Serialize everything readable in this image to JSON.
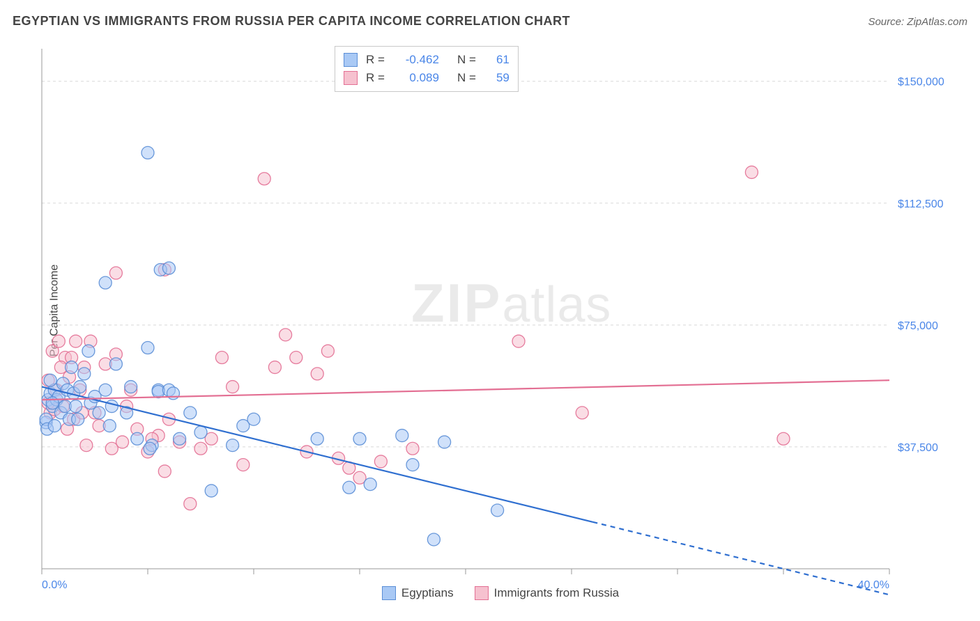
{
  "title": "EGYPTIAN VS IMMIGRANTS FROM RUSSIA PER CAPITA INCOME CORRELATION CHART",
  "source": "Source: ZipAtlas.com",
  "ylabel": "Per Capita Income",
  "watermark_bold": "ZIP",
  "watermark_light": "atlas",
  "chart": {
    "type": "scatter",
    "xlim": [
      0,
      40
    ],
    "ylim": [
      0,
      160000
    ],
    "x_ticks": [
      0,
      5,
      10,
      15,
      20,
      25,
      30,
      35,
      40
    ],
    "x_tick_labels": {
      "0": "0.0%",
      "40": "40.0%"
    },
    "y_gridlines": [
      37500,
      75000,
      112500,
      150000
    ],
    "y_tick_labels": [
      "$37,500",
      "$75,000",
      "$112,500",
      "$150,000"
    ],
    "grid_color": "#d8d8d8",
    "axis_color": "#999999",
    "label_color": "#4a86e8",
    "label_fontsize": 16,
    "background_color": "#ffffff",
    "marker_radius": 9,
    "marker_opacity": 0.55,
    "series": [
      {
        "name": "Egyptians",
        "fill": "#a9c9f5",
        "stroke": "#5b8ed6",
        "line_color": "#2f6fd0",
        "line_width": 2.2,
        "trend": {
          "y_at_x0": 56000,
          "y_at_x40": -8000,
          "solid_until_x": 26
        },
        "R": "-0.462",
        "N": "61",
        "points": [
          [
            0.3,
            52000
          ],
          [
            0.4,
            54000
          ],
          [
            0.5,
            50000
          ],
          [
            0.6,
            55000
          ],
          [
            0.7,
            52000
          ],
          [
            0.8,
            53000
          ],
          [
            0.5,
            51000
          ],
          [
            0.9,
            48000
          ],
          [
            1.0,
            57000
          ],
          [
            1.1,
            50000
          ],
          [
            1.2,
            55000
          ],
          [
            1.3,
            46000
          ],
          [
            0.2,
            45000
          ],
          [
            0.4,
            58000
          ],
          [
            1.5,
            54000
          ],
          [
            1.6,
            50000
          ],
          [
            1.8,
            56000
          ],
          [
            2.0,
            60000
          ],
          [
            2.2,
            67000
          ],
          [
            2.3,
            51000
          ],
          [
            2.5,
            53000
          ],
          [
            2.7,
            48000
          ],
          [
            3.0,
            55000
          ],
          [
            3.2,
            44000
          ],
          [
            3.3,
            50000
          ],
          [
            3.5,
            63000
          ],
          [
            4.0,
            48000
          ],
          [
            4.2,
            56000
          ],
          [
            4.5,
            40000
          ],
          [
            5.0,
            68000
          ],
          [
            5.2,
            38000
          ],
          [
            5.5,
            55000
          ],
          [
            5.5,
            54500
          ],
          [
            5.6,
            92000
          ],
          [
            6.0,
            92500
          ],
          [
            6.0,
            55000
          ],
          [
            6.2,
            54000
          ],
          [
            6.5,
            40000
          ],
          [
            7.0,
            48000
          ],
          [
            7.5,
            42000
          ],
          [
            8.0,
            24000
          ],
          [
            9.0,
            38000
          ],
          [
            9.5,
            44000
          ],
          [
            10.0,
            46000
          ],
          [
            3.0,
            88000
          ],
          [
            5.0,
            128000
          ],
          [
            5.1,
            37000
          ],
          [
            13.0,
            40000
          ],
          [
            14.5,
            25000
          ],
          [
            15.0,
            40000
          ],
          [
            15.5,
            26000
          ],
          [
            17.0,
            41000
          ],
          [
            17.5,
            32000
          ],
          [
            18.5,
            9000
          ],
          [
            19.0,
            39000
          ],
          [
            21.5,
            18000
          ],
          [
            0.2,
            46000
          ],
          [
            0.25,
            43000
          ],
          [
            0.6,
            44000
          ],
          [
            1.4,
            62000
          ],
          [
            1.7,
            46000
          ]
        ]
      },
      {
        "name": "Immigrants from Russia",
        "fill": "#f6c1cf",
        "stroke": "#e36f93",
        "line_color": "#e36f93",
        "line_width": 2.2,
        "trend": {
          "y_at_x0": 52000,
          "y_at_x40": 58000,
          "solid_until_x": 40
        },
        "R": "0.089",
        "N": "59",
        "points": [
          [
            0.4,
            48000
          ],
          [
            0.5,
            67000
          ],
          [
            0.6,
            49000
          ],
          [
            0.8,
            70000
          ],
          [
            1.0,
            50000
          ],
          [
            1.1,
            65000
          ],
          [
            1.3,
            59000
          ],
          [
            1.4,
            65000
          ],
          [
            1.5,
            46000
          ],
          [
            1.6,
            70000
          ],
          [
            1.8,
            55000
          ],
          [
            2.0,
            62000
          ],
          [
            2.3,
            70000
          ],
          [
            2.5,
            48000
          ],
          [
            2.7,
            44000
          ],
          [
            3.0,
            63000
          ],
          [
            3.3,
            37000
          ],
          [
            3.5,
            66000
          ],
          [
            3.8,
            39000
          ],
          [
            4.0,
            50000
          ],
          [
            4.2,
            55000
          ],
          [
            4.5,
            43000
          ],
          [
            3.5,
            91000
          ],
          [
            5.0,
            36000
          ],
          [
            5.5,
            41000
          ],
          [
            5.8,
            30000
          ],
          [
            6.0,
            46000
          ],
          [
            6.5,
            39000
          ],
          [
            7.0,
            20000
          ],
          [
            7.5,
            37000
          ],
          [
            8.0,
            40000
          ],
          [
            8.5,
            65000
          ],
          [
            9.0,
            56000
          ],
          [
            9.5,
            32000
          ],
          [
            10.5,
            120000
          ],
          [
            11.0,
            62000
          ],
          [
            11.5,
            72000
          ],
          [
            12.0,
            65000
          ],
          [
            12.5,
            36000
          ],
          [
            13.0,
            60000
          ],
          [
            13.5,
            67000
          ],
          [
            14.0,
            34000
          ],
          [
            14.5,
            31000
          ],
          [
            15.0,
            28000
          ],
          [
            16.0,
            33000
          ],
          [
            17.5,
            37000
          ],
          [
            22.5,
            70000
          ],
          [
            25.5,
            48000
          ],
          [
            33.5,
            122000
          ],
          [
            35.0,
            40000
          ],
          [
            0.3,
            51000
          ],
          [
            0.7,
            55000
          ],
          [
            1.9,
            48000
          ],
          [
            2.1,
            38000
          ],
          [
            5.2,
            40000
          ],
          [
            5.8,
            92000
          ],
          [
            0.9,
            62000
          ],
          [
            0.3,
            58000
          ],
          [
            1.2,
            43000
          ]
        ]
      }
    ]
  },
  "corr_legend": {
    "R_label": "R =",
    "N_label": "N ="
  },
  "bottom_legend": {
    "s1": "Egyptians",
    "s2": "Immigrants from Russia"
  }
}
